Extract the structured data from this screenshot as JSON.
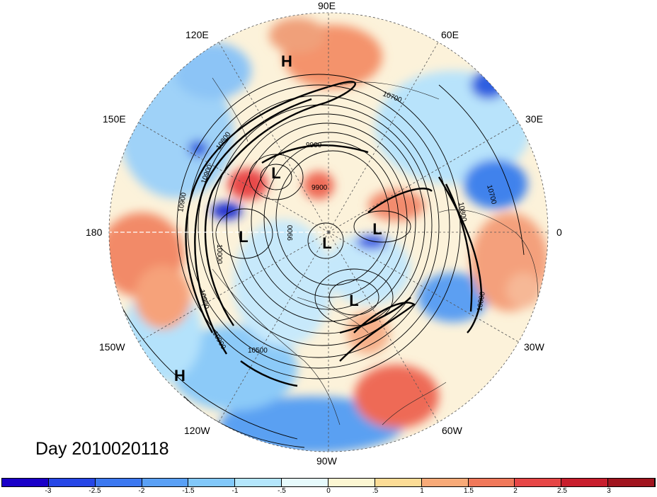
{
  "title": "Day 2010020118",
  "longitude_labels": [
    "90E",
    "60E",
    "30E",
    "0",
    "30W",
    "60W",
    "90W",
    "120W",
    "150W",
    "180",
    "150E",
    "120E"
  ],
  "pressure_systems": [
    {
      "type": "H"
    },
    {
      "type": "H"
    },
    {
      "type": "L"
    },
    {
      "type": "L"
    },
    {
      "type": "L"
    },
    {
      "type": "L"
    },
    {
      "type": "L"
    }
  ],
  "contour_labels": [
    "10700",
    "10700",
    "10800",
    "10800",
    "9900",
    "9900",
    "9900",
    "10900",
    "10000",
    "10900",
    "10800",
    "10500",
    "10900",
    "10900"
  ],
  "colorbar": {
    "ticks": [
      "-3",
      "-2.5",
      "-2",
      "-1.5",
      "-1",
      "-.5",
      "0",
      ".5",
      "1",
      "1.5",
      "2",
      "2.5",
      "3"
    ],
    "colors": [
      "#1a00c8",
      "#2646e6",
      "#3c78f0",
      "#5aa0f5",
      "#82c8fa",
      "#b4e6fc",
      "#e6fafc",
      "#fcf6d2",
      "#fcdc96",
      "#f8aa78",
      "#f0785a",
      "#e64646",
      "#c81e2d",
      "#a0141e"
    ]
  }
}
